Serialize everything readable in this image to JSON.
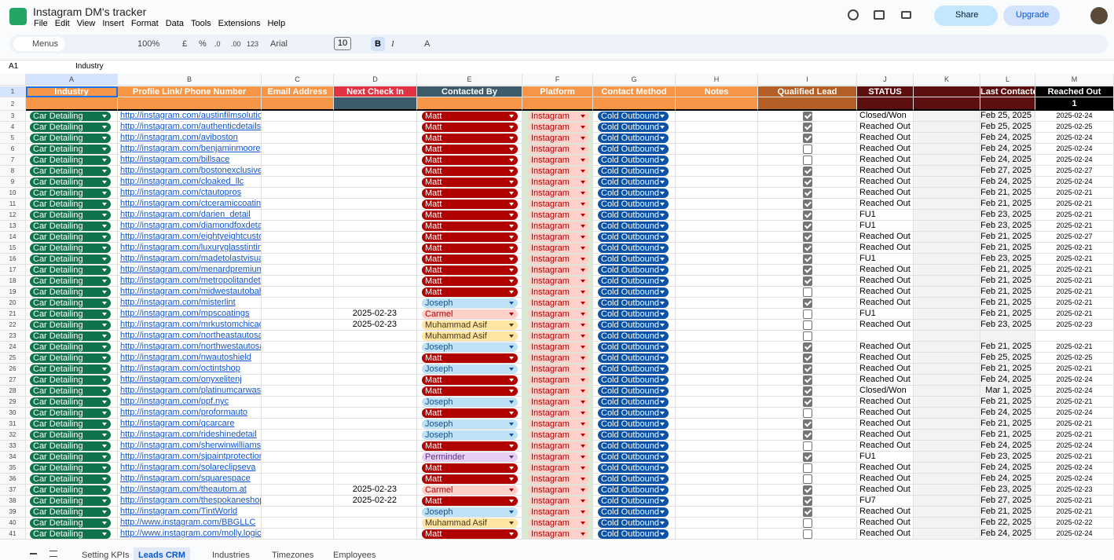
{
  "app": {
    "title": "Instagram DM's tracker",
    "menu": [
      "File",
      "Edit",
      "View",
      "Insert",
      "Format",
      "Data",
      "Tools",
      "Extensions",
      "Help"
    ],
    "share": "Share",
    "upgrade": "Upgrade"
  },
  "toolbar": {
    "search": "Menus",
    "zoom": "100%",
    "currency": "£",
    "percent": "%",
    "dec_less": ".0",
    "dec_more": ".00",
    "number_format": "123",
    "font": "Arial",
    "font_size": "10",
    "bold": "B",
    "italic": "I",
    "text_color": "A"
  },
  "formula_bar": {
    "cell": "A1",
    "content": "Industry"
  },
  "sheet": {
    "columns": [
      "A",
      "B",
      "C",
      "D",
      "E",
      "F",
      "G",
      "H",
      "I",
      "J",
      "K",
      "L",
      "M"
    ],
    "row_numbers": [
      1,
      2,
      3,
      4,
      5,
      6,
      7,
      8,
      9,
      10,
      11,
      12,
      13,
      14,
      15,
      16,
      17,
      18,
      19,
      20,
      21,
      22,
      23,
      24,
      25,
      26,
      27,
      28,
      29,
      30,
      31,
      32,
      33,
      34,
      35,
      36,
      37,
      38,
      39,
      40,
      41
    ],
    "header": [
      "Industry",
      "Profile Link/ Phone Number",
      "Email Address",
      "Next Check In",
      "Contacted By",
      "Platform",
      "Contact Method",
      "Notes",
      "Qualified Lead",
      "STATUS",
      null,
      "Last Contacted",
      "Reached Out"
    ],
    "header_colors": [
      "#f79646",
      "#f79646",
      "#f79646",
      "#e03444",
      "#3d5c6b",
      "#f79646",
      "#f79646",
      "#f79646",
      "#b45f26",
      "#5b0f0f",
      "#5b0f0f",
      "#5b0f0f",
      "#000000"
    ],
    "row2": [
      null,
      null,
      null,
      null,
      null,
      null,
      null,
      null,
      null,
      null,
      null,
      null,
      1
    ],
    "row2_colors": [
      "#f79646",
      "#f79646",
      "#f79646",
      "#3d5c6b",
      "#f79646",
      "#f79646",
      "#f79646",
      "#f79646",
      "#b45f26",
      "#5b0f0f",
      "#5b0f0f",
      "#5b0f0f",
      "#000000"
    ],
    "chip_colors": {
      "Car Detailing": [
        "#11734b",
        "#ffffff"
      ],
      "Matt": [
        "#b10202",
        "#ffffff"
      ],
      "Joseph": [
        "#bfe1f6",
        "#0a53a8"
      ],
      "Carmel": [
        "#ffcfc9",
        "#b10202"
      ],
      "Muhammad Asif": [
        "#ffe5a0",
        "#473821"
      ],
      "Perminder": [
        "#e6cff2",
        "#5a3286"
      ],
      "Instagram": [
        "#ffcfc9",
        "#b10202"
      ],
      "Cold Outbound": [
        "#0a53a8",
        "#ffffff"
      ]
    },
    "rows": [
      [
        "Car Detailing",
        "http://instagram.com/austinfilmsolutions",
        null,
        null,
        "Matt",
        "Instagram",
        "Cold Outbound",
        null,
        true,
        "Closed/Won",
        null,
        "Feb 25, 2025",
        "2025-02-24"
      ],
      [
        "Car Detailing",
        "http://instagram.com/authenticdetailsatx",
        null,
        null,
        "Matt",
        "Instagram",
        "Cold Outbound",
        null,
        true,
        "Reached Out",
        null,
        "Feb 25, 2025",
        "2025-02-25"
      ],
      [
        "Car Detailing",
        "http://instagram.com/aviboston",
        null,
        null,
        "Matt",
        "Instagram",
        "Cold Outbound",
        null,
        true,
        "Reached Out",
        null,
        "Feb 24, 2025",
        "2025-02-24"
      ],
      [
        "Car Detailing",
        "http://instagram.com/benjaminmoore",
        null,
        null,
        "Matt",
        "Instagram",
        "Cold Outbound",
        null,
        false,
        "Reached Out",
        null,
        "Feb 24, 2025",
        "2025-02-24"
      ],
      [
        "Car Detailing",
        "http://instagram.com/billsace",
        null,
        null,
        "Matt",
        "Instagram",
        "Cold Outbound",
        null,
        false,
        "Reached Out",
        null,
        "Feb 24, 2025",
        "2025-02-24"
      ],
      [
        "Car Detailing",
        "http://instagram.com/bostonexclusivecarcare",
        null,
        null,
        "Matt",
        "Instagram",
        "Cold Outbound",
        null,
        true,
        "Reached Out",
        null,
        "Feb 27, 2025",
        "2025-02-27"
      ],
      [
        "Car Detailing",
        "http://instagram.com/cloaked_llc",
        null,
        null,
        "Matt",
        "Instagram",
        "Cold Outbound",
        null,
        true,
        "Reached Out",
        null,
        "Feb 24, 2025",
        "2025-02-24"
      ],
      [
        "Car Detailing",
        "http://instagram.com/ctautopros",
        null,
        null,
        "Matt",
        "Instagram",
        "Cold Outbound",
        null,
        true,
        "Reached Out",
        null,
        "Feb 21, 2025",
        "2025-02-21"
      ],
      [
        "Car Detailing",
        "http://instagram.com/ctceramiccoatings",
        null,
        null,
        "Matt",
        "Instagram",
        "Cold Outbound",
        null,
        true,
        "Reached Out",
        null,
        "Feb 21, 2025",
        "2025-02-21"
      ],
      [
        "Car Detailing",
        "http://instagram.com/darien_detail",
        null,
        null,
        "Matt",
        "Instagram",
        "Cold Outbound",
        null,
        true,
        "FU1",
        null,
        "Feb 23, 2025",
        "2025-02-21"
      ],
      [
        "Car Detailing",
        "http://instagram.com/diamondfoxdetail",
        null,
        null,
        "Matt",
        "Instagram",
        "Cold Outbound",
        null,
        true,
        "FU1",
        null,
        "Feb 23, 2025",
        "2025-02-21"
      ],
      [
        "Car Detailing",
        "http://instagram.com/eightyeightcustoms",
        null,
        null,
        "Matt",
        "Instagram",
        "Cold Outbound",
        null,
        true,
        "Reached Out",
        null,
        "Feb 21, 2025",
        "2025-02-27"
      ],
      [
        "Car Detailing",
        "http://instagram.com/luxuryglasstinting",
        null,
        null,
        "Matt",
        "Instagram",
        "Cold Outbound",
        null,
        true,
        "Reached Out",
        null,
        "Feb 21, 2025",
        "2025-02-21"
      ],
      [
        "Car Detailing",
        "http://instagram.com/madetolastvisual",
        null,
        null,
        "Matt",
        "Instagram",
        "Cold Outbound",
        null,
        true,
        "FU1",
        null,
        "Feb 23, 2025",
        "2025-02-21"
      ],
      [
        "Car Detailing",
        "http://instagram.com/menardpremiumdetailing",
        null,
        null,
        "Matt",
        "Instagram",
        "Cold Outbound",
        null,
        true,
        "Reached Out",
        null,
        "Feb 21, 2025",
        "2025-02-21"
      ],
      [
        "Car Detailing",
        "http://instagram.com/metropolitandetail",
        null,
        null,
        "Matt",
        "Instagram",
        "Cold Outbound",
        null,
        true,
        "Reached Out",
        null,
        "Feb 21, 2025",
        "2025-02-21"
      ],
      [
        "Car Detailing",
        "http://instagram.com/midwestautobahnd",
        null,
        null,
        "Matt",
        "Instagram",
        "Cold Outbound",
        null,
        false,
        "Reached Out",
        null,
        "Feb 21, 2025",
        "2025-02-21"
      ],
      [
        "Car Detailing",
        "http://instagram.com/misterlint",
        null,
        null,
        "Joseph",
        "Instagram",
        "Cold Outbound",
        null,
        true,
        "Reached Out",
        null,
        "Feb 21, 2025",
        "2025-02-21"
      ],
      [
        "Car Detailing",
        "http://instagram.com/mpscoatings",
        null,
        "2025-02-23",
        "Carmel",
        "Instagram",
        "Cold Outbound",
        null,
        false,
        "FU1",
        null,
        "Feb 21, 2025",
        "2025-02-21"
      ],
      [
        "Car Detailing",
        "http://instagram.com/mrkustomchicago",
        null,
        "2025-02-23",
        "Muhammad Asif",
        "Instagram",
        "Cold Outbound",
        null,
        false,
        "Reached Out",
        null,
        "Feb 23, 2025",
        "2025-02-23"
      ],
      [
        "Car Detailing",
        "http://instagram.com/northeastautosalon",
        null,
        null,
        "Muhammad Asif",
        "Instagram",
        "Cold Outbound",
        null,
        false,
        null,
        null,
        null,
        null
      ],
      [
        "Car Detailing",
        "http://instagram.com/northwestautosalon",
        null,
        null,
        "Joseph",
        "Instagram",
        "Cold Outbound",
        null,
        true,
        "Reached Out",
        null,
        "Feb 21, 2025",
        "2025-02-21"
      ],
      [
        "Car Detailing",
        "http://instagram.com/nwautoshield",
        null,
        null,
        "Matt",
        "Instagram",
        "Cold Outbound",
        null,
        true,
        "Reached Out",
        null,
        "Feb 25, 2025",
        "2025-02-25"
      ],
      [
        "Car Detailing",
        "http://instagram.com/octintshop",
        null,
        null,
        "Joseph",
        "Instagram",
        "Cold Outbound",
        null,
        true,
        "Reached Out",
        null,
        "Feb 21, 2025",
        "2025-02-21"
      ],
      [
        "Car Detailing",
        "http://instagram.com/onyxelitenj",
        null,
        null,
        "Matt",
        "Instagram",
        "Cold Outbound",
        null,
        true,
        "Reached Out",
        null,
        "Feb 24, 2025",
        "2025-02-24"
      ],
      [
        "Car Detailing",
        "http://instagram.com/platinumcarwash",
        null,
        null,
        "Matt",
        "Instagram",
        "Cold Outbound",
        null,
        true,
        "Closed/Won",
        null,
        "Mar 1, 2025",
        "2025-02-24"
      ],
      [
        "Car Detailing",
        "http://instagram.com/ppf.nyc",
        null,
        null,
        "Joseph",
        "Instagram",
        "Cold Outbound",
        null,
        true,
        "Reached Out",
        null,
        "Feb 21, 2025",
        "2025-02-21"
      ],
      [
        "Car Detailing",
        "http://instagram.com/proformauto",
        null,
        null,
        "Matt",
        "Instagram",
        "Cold Outbound",
        null,
        false,
        "Reached Out",
        null,
        "Feb 24, 2025",
        "2025-02-24"
      ],
      [
        "Car Detailing",
        "http://instagram.com/qcarcare",
        null,
        null,
        "Joseph",
        "Instagram",
        "Cold Outbound",
        null,
        true,
        "Reached Out",
        null,
        "Feb 21, 2025",
        "2025-02-21"
      ],
      [
        "Car Detailing",
        "http://instagram.com/rideshinedetail",
        null,
        null,
        "Joseph",
        "Instagram",
        "Cold Outbound",
        null,
        true,
        "Reached Out",
        null,
        "Feb 21, 2025",
        "2025-02-21"
      ],
      [
        "Car Detailing",
        "http://instagram.com/sherwinwilliams",
        null,
        null,
        "Matt",
        "Instagram",
        "Cold Outbound",
        null,
        false,
        "Reached Out",
        null,
        "Feb 24, 2025",
        "2025-02-24"
      ],
      [
        "Car Detailing",
        "http://instagram.com/sjpaintprotection",
        null,
        null,
        "Perminder",
        "Instagram",
        "Cold Outbound",
        null,
        true,
        "FU1",
        null,
        "Feb 23, 2025",
        "2025-02-21"
      ],
      [
        "Car Detailing",
        "http://instagram.com/solareclipseva",
        null,
        null,
        "Matt",
        "Instagram",
        "Cold Outbound",
        null,
        false,
        "Reached Out",
        null,
        "Feb 24, 2025",
        "2025-02-24"
      ],
      [
        "Car Detailing",
        "http://instagram.com/squarespace",
        null,
        null,
        "Matt",
        "Instagram",
        "Cold Outbound",
        null,
        false,
        "Reached Out",
        null,
        "Feb 24, 2025",
        "2025-02-24"
      ],
      [
        "Car Detailing",
        "http://instagram.com/theautom.at",
        null,
        "2025-02-23",
        "Carmel",
        "Instagram",
        "Cold Outbound",
        null,
        true,
        "Reached Out",
        null,
        "Feb 23, 2025",
        "2025-02-23"
      ],
      [
        "Car Detailing",
        "http://instagram.com/thespokaneshop",
        null,
        "2025-02-22",
        "Matt",
        "Instagram",
        "Cold Outbound",
        null,
        true,
        "FU7",
        null,
        "Feb 27, 2025",
        "2025-02-21"
      ],
      [
        "Car Detailing",
        "http://instagram.com/TintWorld",
        null,
        null,
        "Joseph",
        "Instagram",
        "Cold Outbound",
        null,
        true,
        "Reached Out",
        null,
        "Feb 21, 2025",
        "2025-02-21"
      ],
      [
        "Car Detailing",
        "http://www.instagram.com/BBGLLC",
        null,
        null,
        "Muhammad Asif",
        "Instagram",
        "Cold Outbound",
        null,
        false,
        "Reached Out",
        null,
        "Feb 22, 2025",
        "2025-02-22"
      ],
      [
        "Car Detailing",
        "http://www.instagram.com/molly.logic",
        null,
        null,
        "Matt",
        "Instagram",
        "Cold Outbound",
        null,
        false,
        "Reached Out",
        null,
        "Feb 24, 2025",
        "2025-02-24"
      ]
    ]
  },
  "tabs": [
    "Setting KPIs",
    "Leads CRM",
    "Industries",
    "Timezones",
    "Employees"
  ],
  "active_tab": 1
}
